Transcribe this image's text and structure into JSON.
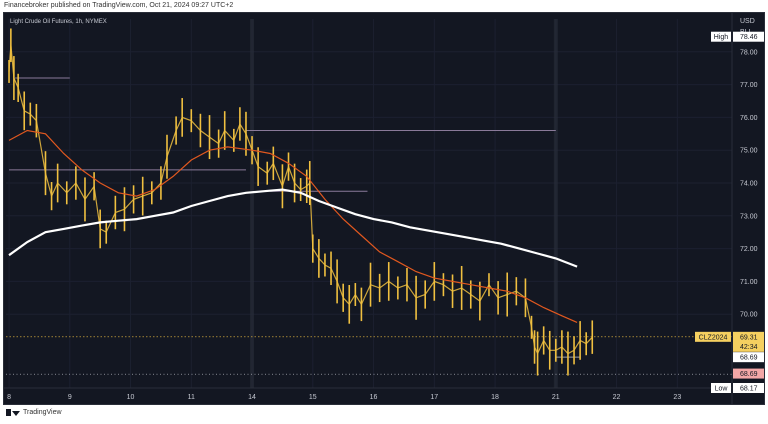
{
  "header": {
    "published_text": "Financebroker published on TradingView.com, Oct 21, 2024 09:27 UTC+2"
  },
  "chart_title": "Light Crude Oil Futures, 1h, NYMEX",
  "footer": {
    "brand": "TradingView"
  },
  "colors": {
    "background": "#131722",
    "candle": "#f0c040",
    "ema_fast": "#e1581f",
    "ema_slow": "#ffffff",
    "grid": "#1c2030",
    "high_label_bg": "#ffffff",
    "price_label_bg": "#f5d060",
    "last_label_bg": "#f4a7a7"
  },
  "chart_data": {
    "type": "line",
    "title": "Light Crude Oil Futures, 1h, NYMEX",
    "xlabel": "",
    "ylabel": "",
    "currency": [
      "USD",
      "BLL"
    ],
    "ylim": [
      67.75,
      79.0
    ],
    "y_ticks": [
      78.0,
      77.0,
      76.0,
      75.0,
      74.0,
      73.0,
      72.0,
      71.0,
      70.0
    ],
    "x_ticks": [
      {
        "label": "8",
        "t": 0
      },
      {
        "label": "9",
        "t": 1
      },
      {
        "label": "10",
        "t": 2
      },
      {
        "label": "11",
        "t": 3
      },
      {
        "label": "14",
        "t": 4
      },
      {
        "label": "15",
        "t": 5
      },
      {
        "label": "16",
        "t": 6
      },
      {
        "label": "17",
        "t": 7
      },
      {
        "label": "18",
        "t": 8
      },
      {
        "label": "21",
        "t": 9
      },
      {
        "label": "22",
        "t": 10
      },
      {
        "label": "23",
        "t": 11
      }
    ],
    "x_range": [
      -0.05,
      11.9
    ],
    "session_separators": [
      4,
      9
    ],
    "series": [
      {
        "kind": "price",
        "points": [
          [
            0.0,
            77.4
          ],
          [
            0.03,
            78.2
          ],
          [
            0.08,
            77.2
          ],
          [
            0.15,
            76.9
          ],
          [
            0.25,
            76.2
          ],
          [
            0.35,
            76.1
          ],
          [
            0.45,
            75.9
          ],
          [
            0.6,
            74.3
          ],
          [
            0.7,
            73.6
          ],
          [
            0.8,
            74.0
          ],
          [
            0.95,
            73.7
          ],
          [
            1.1,
            74.0
          ],
          [
            1.25,
            73.5
          ],
          [
            1.4,
            73.9
          ],
          [
            1.5,
            72.6
          ],
          [
            1.6,
            72.5
          ],
          [
            1.75,
            73.1
          ],
          [
            1.9,
            73.2
          ],
          [
            2.05,
            73.5
          ],
          [
            2.2,
            73.6
          ],
          [
            2.35,
            73.7
          ],
          [
            2.5,
            74.0
          ],
          [
            2.6,
            74.8
          ],
          [
            2.75,
            75.6
          ],
          [
            2.85,
            76.0
          ],
          [
            3.0,
            75.9
          ],
          [
            3.15,
            75.6
          ],
          [
            3.3,
            75.4
          ],
          [
            3.45,
            75.2
          ],
          [
            3.55,
            75.6
          ],
          [
            3.7,
            75.3
          ],
          [
            3.8,
            75.8
          ],
          [
            3.9,
            75.5
          ],
          [
            4.0,
            75.0
          ],
          [
            4.1,
            74.5
          ],
          [
            4.25,
            74.3
          ],
          [
            4.35,
            74.6
          ],
          [
            4.5,
            73.9
          ],
          [
            4.6,
            74.5
          ],
          [
            4.7,
            74.0
          ],
          [
            4.8,
            73.8
          ],
          [
            4.9,
            73.9
          ],
          [
            4.95,
            74.0
          ],
          [
            5.0,
            72.0
          ],
          [
            5.1,
            71.7
          ],
          [
            5.2,
            71.5
          ],
          [
            5.3,
            71.4
          ],
          [
            5.4,
            71.0
          ],
          [
            5.5,
            70.5
          ],
          [
            5.6,
            70.3
          ],
          [
            5.7,
            70.6
          ],
          [
            5.8,
            70.3
          ],
          [
            5.95,
            70.9
          ],
          [
            6.1,
            70.8
          ],
          [
            6.25,
            71.0
          ],
          [
            6.4,
            70.8
          ],
          [
            6.55,
            70.9
          ],
          [
            6.7,
            70.5
          ],
          [
            6.85,
            70.6
          ],
          [
            7.0,
            71.0
          ],
          [
            7.15,
            70.9
          ],
          [
            7.3,
            70.7
          ],
          [
            7.45,
            70.8
          ],
          [
            7.6,
            70.6
          ],
          [
            7.75,
            70.4
          ],
          [
            7.9,
            70.9
          ],
          [
            8.05,
            70.5
          ],
          [
            8.2,
            70.6
          ],
          [
            8.35,
            70.7
          ],
          [
            8.5,
            70.5
          ],
          [
            8.6,
            69.6
          ],
          [
            8.65,
            69.0
          ],
          [
            8.7,
            68.8
          ],
          [
            8.8,
            69.2
          ],
          [
            8.9,
            68.9
          ],
          [
            9.0,
            68.9
          ],
          [
            9.1,
            69.0
          ],
          [
            9.2,
            68.8
          ],
          [
            9.3,
            68.9
          ],
          [
            9.4,
            69.2
          ],
          [
            9.5,
            69.1
          ],
          [
            9.6,
            69.3
          ]
        ]
      },
      {
        "kind": "ema_fast",
        "points": [
          [
            0.0,
            75.3
          ],
          [
            0.3,
            75.6
          ],
          [
            0.6,
            75.5
          ],
          [
            0.9,
            74.9
          ],
          [
            1.2,
            74.4
          ],
          [
            1.5,
            74.0
          ],
          [
            1.8,
            73.7
          ],
          [
            2.1,
            73.6
          ],
          [
            2.4,
            73.8
          ],
          [
            2.7,
            74.2
          ],
          [
            3.0,
            74.7
          ],
          [
            3.3,
            75.0
          ],
          [
            3.6,
            75.1
          ],
          [
            4.0,
            75.0
          ],
          [
            4.3,
            74.9
          ],
          [
            4.6,
            74.6
          ],
          [
            4.9,
            74.2
          ],
          [
            5.2,
            73.5
          ],
          [
            5.5,
            72.9
          ],
          [
            5.8,
            72.4
          ],
          [
            6.1,
            71.9
          ],
          [
            6.4,
            71.6
          ],
          [
            6.7,
            71.3
          ],
          [
            7.0,
            71.1
          ],
          [
            7.3,
            71.0
          ],
          [
            7.6,
            70.9
          ],
          [
            7.9,
            70.8
          ],
          [
            8.2,
            70.7
          ],
          [
            8.5,
            70.5
          ],
          [
            8.8,
            70.2
          ],
          [
            9.1,
            69.95
          ],
          [
            9.35,
            69.75
          ]
        ]
      },
      {
        "kind": "ema_slow",
        "points": [
          [
            0.0,
            71.8
          ],
          [
            0.3,
            72.2
          ],
          [
            0.6,
            72.5
          ],
          [
            0.9,
            72.6
          ],
          [
            1.2,
            72.7
          ],
          [
            1.5,
            72.8
          ],
          [
            1.8,
            72.85
          ],
          [
            2.1,
            72.9
          ],
          [
            2.4,
            73.0
          ],
          [
            2.7,
            73.1
          ],
          [
            3.0,
            73.3
          ],
          [
            3.3,
            73.45
          ],
          [
            3.6,
            73.6
          ],
          [
            3.9,
            73.7
          ],
          [
            4.2,
            73.75
          ],
          [
            4.5,
            73.8
          ],
          [
            4.8,
            73.7
          ],
          [
            5.1,
            73.45
          ],
          [
            5.4,
            73.25
          ],
          [
            5.7,
            73.05
          ],
          [
            6.0,
            72.9
          ],
          [
            6.3,
            72.8
          ],
          [
            6.6,
            72.65
          ],
          [
            6.9,
            72.55
          ],
          [
            7.2,
            72.45
          ],
          [
            7.5,
            72.35
          ],
          [
            7.8,
            72.25
          ],
          [
            8.1,
            72.15
          ],
          [
            8.4,
            72.0
          ],
          [
            8.7,
            71.85
          ],
          [
            9.0,
            71.7
          ],
          [
            9.35,
            71.45
          ]
        ]
      }
    ],
    "reference_lines": [
      {
        "kind": "dotted_price",
        "y": 69.31
      },
      {
        "kind": "dotted_low",
        "y": 68.17
      },
      {
        "kind": "resistance",
        "y": 75.6,
        "x0": 3.9,
        "x1": 9.0
      },
      {
        "kind": "resistance",
        "y": 74.4,
        "x0": 0.0,
        "x1": 3.9
      },
      {
        "kind": "resistance",
        "y": 73.75,
        "x0": 4.3,
        "x1": 5.9
      },
      {
        "kind": "resistance",
        "y": 77.2,
        "x0": 0.1,
        "x1": 1.0
      },
      {
        "kind": "level",
        "y": 68.69,
        "x0": 9.0,
        "x1": 9.4
      }
    ],
    "price_labels": [
      {
        "kind": "high",
        "name": "High",
        "value": "78.46",
        "y": 78.46
      },
      {
        "kind": "symbol",
        "name": "CLZ2024",
        "value": "69.31",
        "y": 69.31,
        "sub": "42:34"
      },
      {
        "kind": "level",
        "value": "68.69",
        "y": 68.69
      },
      {
        "kind": "last",
        "value": "68.69",
        "y": 68.19
      },
      {
        "kind": "low",
        "name": "Low",
        "value": "68.17",
        "y": 67.75
      }
    ]
  }
}
